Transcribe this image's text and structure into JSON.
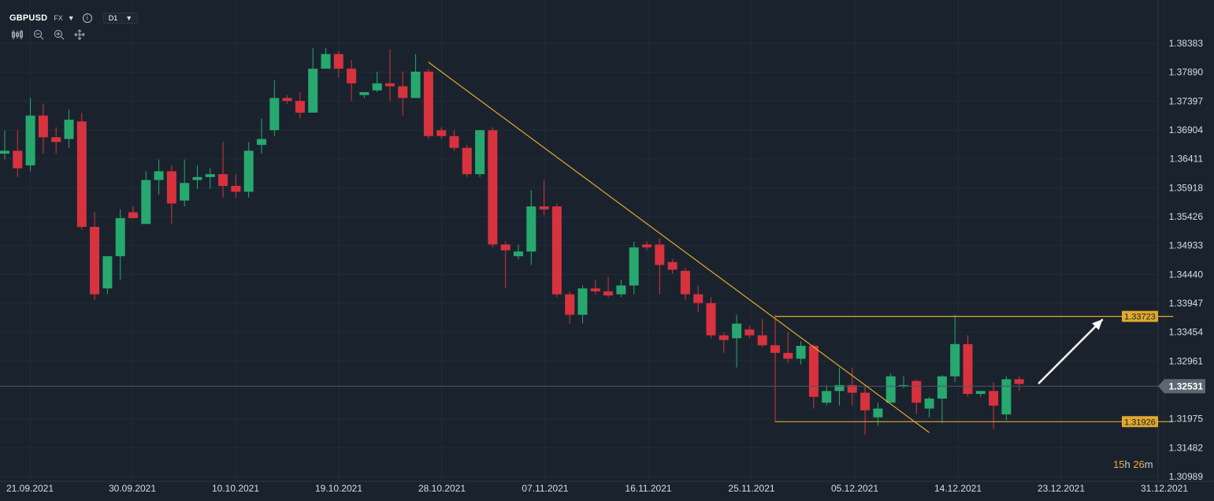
{
  "symbol": "GBPUSD",
  "market": "FX",
  "timeframe": "D1",
  "timer": {
    "hours": "15",
    "h_unit": "h",
    "minutes": "26",
    "m_unit": "m"
  },
  "colors": {
    "background": "#1a232d",
    "bull": "#27a86f",
    "bear": "#d8323f",
    "trendline": "#e0a82e",
    "arrow": "#ffffff",
    "price_tag": "#5d6772"
  },
  "icons": [
    "candlestick-type-icon",
    "zoom-out-icon",
    "zoom-in-icon",
    "crosshair-move-icon"
  ],
  "chart_data": {
    "type": "candlestick",
    "y_axis_ticks": [
      "1.38383",
      "1.37890",
      "1.37397",
      "1.36904",
      "1.36411",
      "1.35918",
      "1.35426",
      "1.34933",
      "1.34440",
      "1.33947",
      "1.33454",
      "1.32961",
      "1.32531",
      "1.31975",
      "1.31482",
      "1.30989"
    ],
    "ylim": [
      1.30989,
      1.385
    ],
    "x_axis_labels": [
      "21.09.2021",
      "30.09.2021",
      "10.10.2021",
      "19.10.2021",
      "28.10.2021",
      "07.11.2021",
      "16.11.2021",
      "25.11.2021",
      "05.12.2021",
      "14.12.2021",
      "23.12.2021",
      "31.12.2021"
    ],
    "current_price": "1.32531",
    "current_price_value": 1.32531,
    "level_labels": [
      "1.33723",
      "1.31926"
    ],
    "levels": [
      1.33723,
      1.31926
    ],
    "trendline": {
      "from": {
        "bar": 33,
        "price": 1.3806
      },
      "to": {
        "bar": 72,
        "price": 1.3174
      }
    },
    "range_lines": [
      {
        "from_bar": 60,
        "to_bar": 91,
        "price": 1.33723
      },
      {
        "from_bar": 60,
        "to_bar": 91,
        "price": 1.31926
      }
    ],
    "arrow": {
      "from": {
        "bar": 80.5,
        "price": 1.32575
      },
      "to": {
        "bar": 85.5,
        "price": 1.33672
      }
    },
    "candles": [
      [
        1.365,
        1.369,
        1.364,
        1.3655
      ],
      [
        1.3655,
        1.369,
        1.361,
        1.3625
      ],
      [
        1.363,
        1.3745,
        1.362,
        1.3715
      ],
      [
        1.3715,
        1.3735,
        1.365,
        1.3678
      ],
      [
        1.3678,
        1.3695,
        1.365,
        1.367
      ],
      [
        1.3675,
        1.3725,
        1.366,
        1.3708
      ],
      [
        1.3705,
        1.372,
        1.352,
        1.3525
      ],
      [
        1.3525,
        1.355,
        1.34,
        1.341
      ],
      [
        1.342,
        1.3475,
        1.341,
        1.3475
      ],
      [
        1.3475,
        1.3555,
        1.3435,
        1.354
      ],
      [
        1.355,
        1.356,
        1.354,
        1.354
      ],
      [
        1.353,
        1.362,
        1.353,
        1.3605
      ],
      [
        1.3605,
        1.364,
        1.358,
        1.362
      ],
      [
        1.362,
        1.363,
        1.353,
        1.3565
      ],
      [
        1.357,
        1.364,
        1.356,
        1.36
      ],
      [
        1.3605,
        1.363,
        1.359,
        1.361
      ],
      [
        1.361,
        1.3625,
        1.359,
        1.3615
      ],
      [
        1.3615,
        1.367,
        1.3575,
        1.3595
      ],
      [
        1.3595,
        1.3615,
        1.3575,
        1.3585
      ],
      [
        1.3585,
        1.367,
        1.3575,
        1.3655
      ],
      [
        1.3665,
        1.371,
        1.365,
        1.3675
      ],
      [
        1.369,
        1.3775,
        1.368,
        1.3745
      ],
      [
        1.3745,
        1.375,
        1.3735,
        1.374
      ],
      [
        1.374,
        1.3755,
        1.371,
        1.372
      ],
      [
        1.372,
        1.383,
        1.372,
        1.3795
      ],
      [
        1.3795,
        1.383,
        1.3795,
        1.382
      ],
      [
        1.382,
        1.3825,
        1.378,
        1.3795
      ],
      [
        1.3795,
        1.381,
        1.374,
        1.377
      ],
      [
        1.375,
        1.3755,
        1.3745,
        1.3755
      ],
      [
        1.3758,
        1.379,
        1.3755,
        1.377
      ],
      [
        1.377,
        1.3828,
        1.374,
        1.3765
      ],
      [
        1.3765,
        1.379,
        1.3715,
        1.3745
      ],
      [
        1.3745,
        1.382,
        1.3745,
        1.379
      ],
      [
        1.379,
        1.3795,
        1.3675,
        1.368
      ],
      [
        1.369,
        1.3695,
        1.3675,
        1.368
      ],
      [
        1.368,
        1.369,
        1.3655,
        1.366
      ],
      [
        1.366,
        1.3665,
        1.361,
        1.3615
      ],
      [
        1.3615,
        1.369,
        1.361,
        1.369
      ],
      [
        1.369,
        1.3695,
        1.349,
        1.3495
      ],
      [
        1.3495,
        1.35,
        1.342,
        1.3485
      ],
      [
        1.3475,
        1.3495,
        1.347,
        1.3483
      ],
      [
        1.3483,
        1.3588,
        1.346,
        1.356
      ],
      [
        1.356,
        1.3605,
        1.3545,
        1.3555
      ],
      [
        1.356,
        1.3565,
        1.3405,
        1.341
      ],
      [
        1.341,
        1.3415,
        1.336,
        1.3375
      ],
      [
        1.3375,
        1.3425,
        1.336,
        1.342
      ],
      [
        1.342,
        1.3435,
        1.341,
        1.3415
      ],
      [
        1.3415,
        1.344,
        1.3405,
        1.3408
      ],
      [
        1.341,
        1.3435,
        1.3405,
        1.3425
      ],
      [
        1.3425,
        1.35,
        1.341,
        1.349
      ],
      [
        1.3495,
        1.35,
        1.3485,
        1.349
      ],
      [
        1.3495,
        1.3505,
        1.341,
        1.346
      ],
      [
        1.3465,
        1.347,
        1.3445,
        1.3452
      ],
      [
        1.345,
        1.3455,
        1.34,
        1.341
      ],
      [
        1.341,
        1.3425,
        1.338,
        1.3395
      ],
      [
        1.3395,
        1.3405,
        1.3335,
        1.334
      ],
      [
        1.334,
        1.3345,
        1.331,
        1.3332
      ],
      [
        1.3335,
        1.3375,
        1.3285,
        1.336
      ],
      [
        1.335,
        1.3357,
        1.3335,
        1.334
      ],
      [
        1.334,
        1.3368,
        1.332,
        1.3323
      ],
      [
        1.3323,
        1.3375,
        1.3192,
        1.331
      ],
      [
        1.331,
        1.3345,
        1.3293,
        1.33
      ],
      [
        1.33,
        1.333,
        1.329,
        1.3322
      ],
      [
        1.3322,
        1.3325,
        1.3215,
        1.3235
      ],
      [
        1.3225,
        1.3255,
        1.322,
        1.3245
      ],
      [
        1.3245,
        1.3285,
        1.322,
        1.3255
      ],
      [
        1.3255,
        1.3285,
        1.322,
        1.3242
      ],
      [
        1.3242,
        1.3255,
        1.317,
        1.3212
      ],
      [
        1.32,
        1.3225,
        1.3185,
        1.3215
      ],
      [
        1.3225,
        1.3275,
        1.3225,
        1.327
      ],
      [
        1.3255,
        1.327,
        1.325,
        1.3255
      ],
      [
        1.3262,
        1.3265,
        1.3205,
        1.3225
      ],
      [
        1.3215,
        1.3235,
        1.32,
        1.3232
      ],
      [
        1.3232,
        1.3272,
        1.319,
        1.327
      ],
      [
        1.327,
        1.3375,
        1.326,
        1.3325
      ],
      [
        1.3325,
        1.334,
        1.3235,
        1.324
      ],
      [
        1.324,
        1.3245,
        1.3235,
        1.3245
      ],
      [
        1.3245,
        1.326,
        1.318,
        1.322
      ],
      [
        1.3205,
        1.327,
        1.3195,
        1.3265
      ],
      [
        1.3265,
        1.327,
        1.3245,
        1.3257
      ]
    ]
  }
}
